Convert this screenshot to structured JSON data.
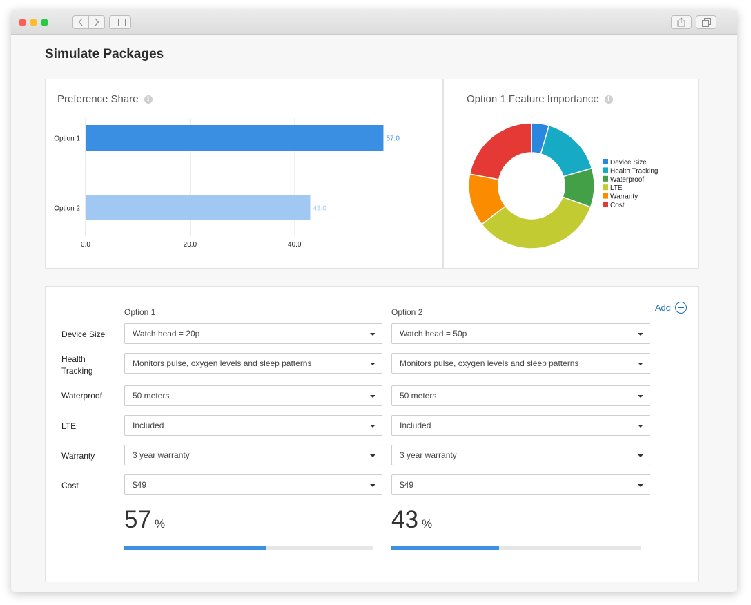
{
  "page": {
    "title": "Simulate Packages"
  },
  "preference_share": {
    "title": "Preference Share",
    "info_icon": "info-icon"
  },
  "feature_importance": {
    "title": "Option 1 Feature Importance",
    "info_icon": "info-icon"
  },
  "chart_data": [
    {
      "type": "bar",
      "orientation": "horizontal",
      "title": "Preference Share",
      "categories": [
        "Option 1",
        "Option 2"
      ],
      "values": [
        57.0,
        43.0
      ],
      "value_labels": [
        "57.0",
        "43.0"
      ],
      "colors": [
        "#3b8fe3",
        "#a0c8f2"
      ],
      "value_label_colors": [
        "#3b8fe3",
        "#a0c8f2"
      ],
      "xticks": [
        "0.0",
        "20.0",
        "40.0"
      ],
      "xtick_values": [
        0,
        20,
        40
      ],
      "xlim": [
        0,
        65
      ],
      "grid": true
    },
    {
      "type": "pie",
      "style": "donut",
      "title": "Option 1 Feature Importance",
      "labels": [
        "Device Size",
        "Health Tracking",
        "Waterproof",
        "LTE",
        "Warranty",
        "Cost"
      ],
      "values": [
        4.5,
        16,
        10,
        34,
        13.5,
        22
      ],
      "colors": [
        "#2b86e0",
        "#17aac4",
        "#43a047",
        "#c2cb32",
        "#fb8c00",
        "#e53935"
      ],
      "legend_position": "right"
    }
  ],
  "config": {
    "add_label": "Add",
    "options": [
      {
        "header": "Option 1",
        "selections": [
          "Watch head = 20p",
          "Monitors pulse, oxygen levels and sleep patterns",
          "50 meters",
          "Included",
          "3 year warranty",
          "$49"
        ],
        "share": "57",
        "share_fraction": 0.57,
        "unit": "%"
      },
      {
        "header": "Option 2",
        "selections": [
          "Watch head = 50p",
          "Monitors pulse, oxygen levels and sleep patterns",
          "50 meters",
          "Included",
          "3 year warranty",
          "$49"
        ],
        "share": "43",
        "share_fraction": 0.43,
        "unit": "%"
      }
    ],
    "features": [
      {
        "label": "Device Size"
      },
      {
        "label_line1": "Health",
        "label_line2": "Tracking"
      },
      {
        "label": "Waterproof"
      },
      {
        "label": "LTE"
      },
      {
        "label": "Warranty"
      },
      {
        "label": "Cost"
      }
    ]
  },
  "colors": {
    "accent": "#3d8fe0",
    "link": "#1f6fb5"
  }
}
